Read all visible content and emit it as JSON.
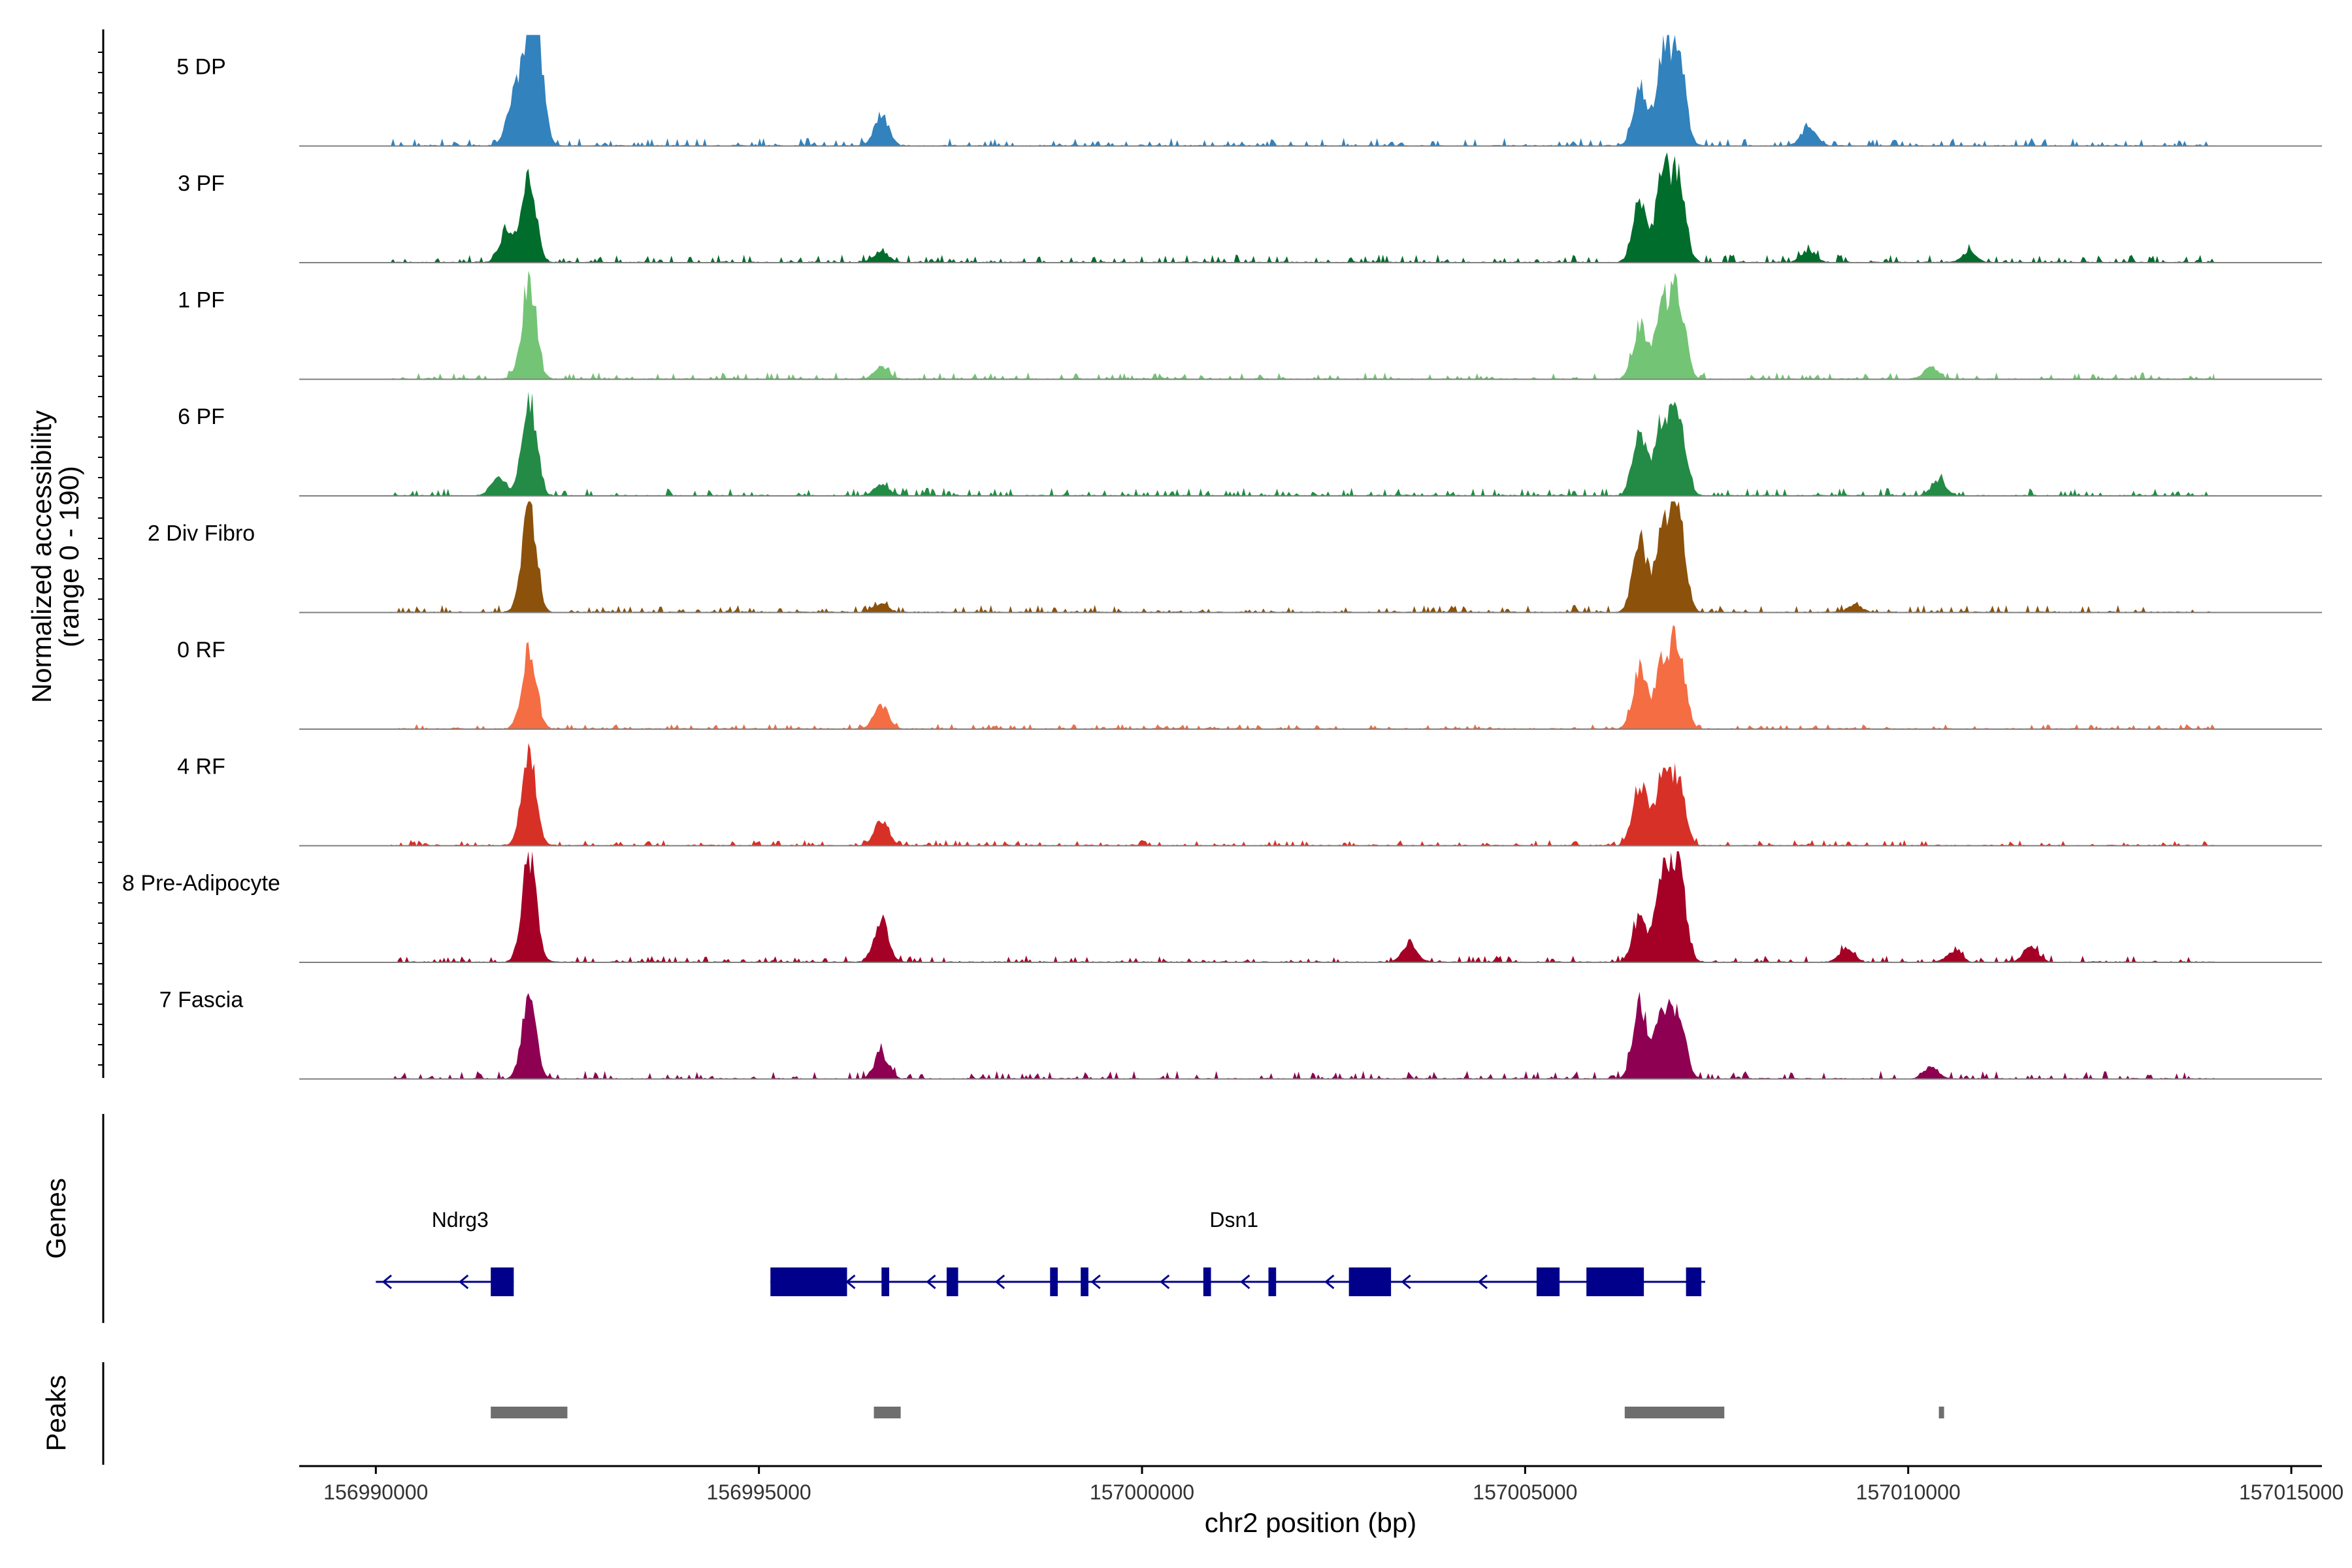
{
  "chart_data": {
    "type": "area",
    "title": "",
    "ylabel_line1": "Normalized accessibility",
    "ylabel_line2": "(range 0 - 190)",
    "y_range": [
      0,
      190
    ],
    "xlabel": "chr2 position (bp)",
    "xlim": [
      156989000,
      157015400
    ],
    "xticks": [
      156990000,
      156995000,
      157000000,
      157005000,
      157010000,
      157015000
    ],
    "xtick_labels": [
      "156990000",
      "156995000",
      "157000000",
      "157005000",
      "157010000",
      "157015000"
    ],
    "track_start": 156990200,
    "track_end": 157014000,
    "tracks": [
      {
        "name": "5 DP",
        "color": "#3182BD",
        "peaks": [
          [
            156991800,
            80
          ],
          [
            156992000,
            150
          ],
          [
            156992100,
            155
          ],
          [
            156996600,
            55
          ],
          [
            157006500,
            95
          ],
          [
            157006800,
            160
          ],
          [
            157007000,
            155
          ],
          [
            157008700,
            35
          ]
        ],
        "noise": 14
      },
      {
        "name": "3 PF",
        "color": "#006D2C",
        "peaks": [
          [
            156991700,
            50
          ],
          [
            156992000,
            145
          ],
          [
            156996600,
            20
          ],
          [
            157006500,
            100
          ],
          [
            157006800,
            150
          ],
          [
            157007000,
            145
          ],
          [
            157008700,
            20
          ],
          [
            157010800,
            18
          ]
        ],
        "noise": 14
      },
      {
        "name": "1 PF",
        "color": "#74C476",
        "peaks": [
          [
            156992000,
            170
          ],
          [
            156996600,
            20
          ],
          [
            157006500,
            95
          ],
          [
            157006800,
            125
          ],
          [
            157007000,
            140
          ],
          [
            157010300,
            22
          ]
        ],
        "noise": 12
      },
      {
        "name": "6 PF",
        "color": "#238B45",
        "peaks": [
          [
            156991600,
            35
          ],
          [
            156992000,
            165
          ],
          [
            156996600,
            20
          ],
          [
            157006500,
            115
          ],
          [
            157006800,
            130
          ],
          [
            157007000,
            125
          ],
          [
            157010400,
            26
          ]
        ],
        "noise": 14
      },
      {
        "name": "2 Div Fibro",
        "color": "#8C510A",
        "peaks": [
          [
            156992000,
            190
          ],
          [
            156996600,
            16
          ],
          [
            157006500,
            125
          ],
          [
            157006800,
            145
          ],
          [
            157007000,
            170
          ],
          [
            157009300,
            14
          ]
        ],
        "noise": 13
      },
      {
        "name": "0 RF",
        "color": "#F46D43",
        "peaks": [
          [
            156992000,
            140
          ],
          [
            156996600,
            40
          ],
          [
            157006500,
            105
          ],
          [
            157006800,
            120
          ],
          [
            157007000,
            140
          ]
        ],
        "noise": 9
      },
      {
        "name": "4 RF",
        "color": "#D73027",
        "peaks": [
          [
            156992000,
            165
          ],
          [
            156996600,
            45
          ],
          [
            157006500,
            110
          ],
          [
            157006800,
            125
          ],
          [
            157007000,
            105
          ]
        ],
        "noise": 10
      },
      {
        "name": "8 Pre-Adipocyte",
        "color": "#A50026",
        "peaks": [
          [
            156992000,
            185
          ],
          [
            156996600,
            75
          ],
          [
            157003500,
            35
          ],
          [
            157006500,
            80
          ],
          [
            157006800,
            140
          ],
          [
            157007000,
            180
          ],
          [
            157009200,
            25
          ],
          [
            157010600,
            20
          ],
          [
            157011600,
            28
          ]
        ],
        "noise": 12
      },
      {
        "name": "7 Fascia",
        "color": "#8E0152",
        "peaks": [
          [
            156992000,
            140
          ],
          [
            156996600,
            45
          ],
          [
            157006500,
            135
          ],
          [
            157006800,
            110
          ],
          [
            157007000,
            115
          ],
          [
            157010300,
            22
          ]
        ],
        "noise": 14
      }
    ],
    "genes_track_label": "Genes",
    "genes": [
      {
        "name": "Ndrg3",
        "start": 156990000,
        "end": 156991800,
        "label_pos": 156991100,
        "strand": "-",
        "exons": [
          [
            156991500,
            156991800
          ]
        ],
        "arrows": [
          156990100,
          156991100
        ]
      },
      {
        "name": "Dsn1",
        "start": 156995150,
        "end": 157007350,
        "label_pos": 157001200,
        "strand": "-",
        "exons": [
          [
            156995150,
            156996150
          ],
          [
            156996600,
            156996700
          ],
          [
            156997450,
            156997600
          ],
          [
            156998800,
            156998900
          ],
          [
            156999200,
            156999300
          ],
          [
            157000800,
            157000900
          ],
          [
            157001650,
            157001750
          ],
          [
            157002700,
            157003250
          ],
          [
            157005150,
            157005450
          ],
          [
            157005800,
            157006550
          ],
          [
            157007100,
            157007300
          ]
        ],
        "arrows": [
          156996150,
          156997200,
          156998100,
          156999350,
          157000250,
          157001300,
          157002400,
          157003400,
          157004400
        ]
      }
    ],
    "peaks_track_label": "Peaks",
    "peak_regions": [
      [
        156991500,
        156992500
      ],
      [
        156996500,
        156996850
      ],
      [
        157006300,
        157007600
      ],
      [
        157010400,
        157010450
      ]
    ],
    "gene_color": "#00008B",
    "peak_color": "#6E6E6E"
  }
}
